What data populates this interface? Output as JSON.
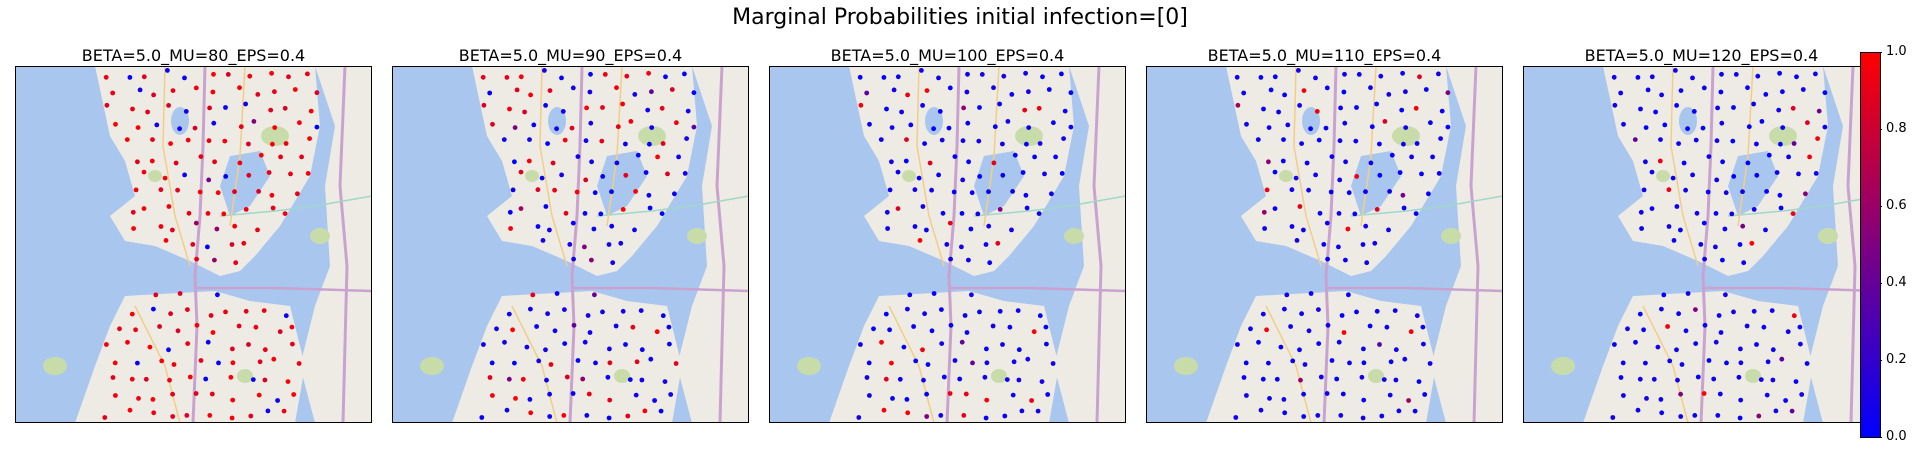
{
  "figure": {
    "title": "Marginal Probabilities initial infection=[0]"
  },
  "chart_data": {
    "type": "scatter",
    "title": "Marginal Probabilities initial infection=[0]",
    "background": "map of Seattle (streets, water, parks)",
    "colormap": {
      "low_color": "#0000ff",
      "high_color": "#ff0000",
      "range": [
        0.0,
        1.0
      ],
      "ticks": [
        "0.0",
        "0.2",
        "0.4",
        "0.6",
        "0.8",
        "1.0"
      ]
    },
    "colors": {
      "water": "#a9c6ef",
      "land": "#eeebe4",
      "park": "#c8dcaa",
      "highway": "#c9a2cf",
      "arterial": "#f2cd86"
    },
    "panels": [
      {
        "title": "BETA=5.0_MU=80_EPS=0.4",
        "marker_color_summary": "mostly red (high probability)",
        "high_fraction": 0.8
      },
      {
        "title": "BETA=5.0_MU=90_EPS=0.4",
        "marker_color_summary": "mixed red and blue",
        "high_fraction": 0.3
      },
      {
        "title": "BETA=5.0_MU=100_EPS=0.4",
        "marker_color_summary": "mostly blue",
        "high_fraction": 0.1
      },
      {
        "title": "BETA=5.0_MU=110_EPS=0.4",
        "marker_color_summary": "mostly blue",
        "high_fraction": 0.05
      },
      {
        "title": "BETA=5.0_MU=120_EPS=0.4",
        "marker_color_summary": "mostly blue",
        "high_fraction": 0.04
      }
    ]
  }
}
